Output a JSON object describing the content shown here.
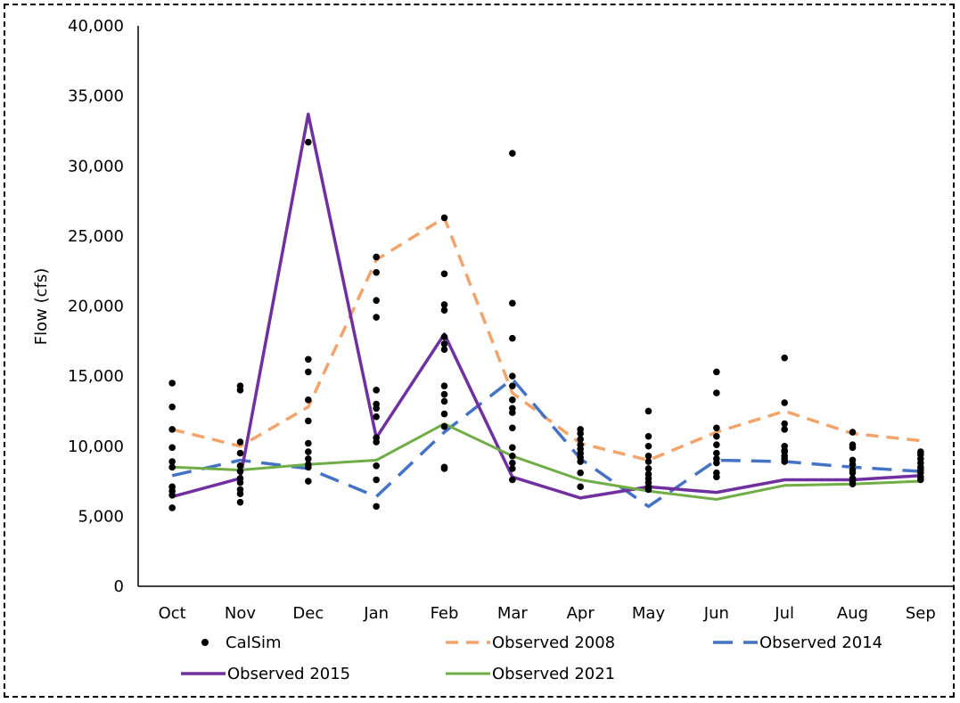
{
  "chart_data": {
    "type": "line",
    "title": "",
    "xlabel": "",
    "ylabel": "Flow (cfs)",
    "ylim": [
      0,
      40000
    ],
    "yticks": [
      0,
      5000,
      10000,
      15000,
      20000,
      25000,
      30000,
      35000,
      40000
    ],
    "ytick_labels": [
      "0",
      "5,000",
      "10,000",
      "15,000",
      "20,000",
      "25,000",
      "30,000",
      "35,000",
      "40,000"
    ],
    "categories": [
      "Oct",
      "Nov",
      "Dec",
      "Jan",
      "Feb",
      "Mar",
      "Apr",
      "May",
      "Jun",
      "Jul",
      "Aug",
      "Sep"
    ],
    "grid": false,
    "legend_position": "bottom",
    "scatter": {
      "name": "CalSim",
      "color": "#000000",
      "points": [
        [
          14500,
          12800,
          11200,
          9900,
          8900,
          8500,
          7100,
          6800,
          6500,
          5600
        ],
        [
          14300,
          14000,
          10300,
          9500,
          8600,
          8200,
          7700,
          7400,
          6900,
          6600,
          6000
        ],
        [
          31700,
          16200,
          15300,
          13300,
          11800,
          10200,
          9600,
          9100,
          8700,
          8500,
          7500
        ],
        [
          23500,
          22400,
          20400,
          19200,
          14000,
          13000,
          12700,
          12100,
          10600,
          10300,
          8600,
          7600,
          5700
        ],
        [
          26300,
          22300,
          20100,
          19700,
          17800,
          17300,
          16900,
          14300,
          13700,
          13200,
          12300,
          11400,
          8500,
          8400
        ],
        [
          30900,
          20200,
          17700,
          15000,
          14300,
          13300,
          12700,
          12400,
          11300,
          9900,
          9300,
          8800,
          8400,
          7600
        ],
        [
          11200,
          10900,
          10500,
          10100,
          9800,
          9500,
          9200,
          8900,
          8100,
          7100
        ],
        [
          12500,
          10700,
          10000,
          9300,
          8900,
          8400,
          8000,
          7700,
          7400,
          7100,
          6900
        ],
        [
          15300,
          13800,
          11300,
          10700,
          10100,
          9500,
          9100,
          8800,
          8100,
          7800
        ],
        [
          16300,
          13100,
          11600,
          11200,
          10000,
          9700,
          9600,
          9300,
          9100,
          8900
        ],
        [
          11000,
          10100,
          9900,
          9000,
          8700,
          8300,
          8100,
          7700,
          7500,
          7300
        ],
        [
          9600,
          9400,
          9100,
          8800,
          8500,
          8300,
          8100,
          7800,
          7600
        ]
      ]
    },
    "series": [
      {
        "name": "Observed 2008",
        "color": "#f4a46a",
        "dash": "14 9",
        "width": 3.5,
        "values": [
          11200,
          10000,
          12800,
          23300,
          26300,
          13800,
          10200,
          9000,
          11000,
          12500,
          10900,
          10400
        ]
      },
      {
        "name": "Observed 2014",
        "color": "#4472c4",
        "dash": "22 12",
        "width": 3.5,
        "values": [
          7900,
          9000,
          8400,
          6400,
          11000,
          14800,
          9100,
          5700,
          9000,
          8900,
          8500,
          8200
        ]
      },
      {
        "name": "Observed 2015",
        "color": "#7030a0",
        "dash": "",
        "width": 3.5,
        "values": [
          6400,
          7700,
          33700,
          10600,
          18000,
          7800,
          6300,
          7100,
          6700,
          7600,
          7600,
          7900
        ]
      },
      {
        "name": "Observed 2021",
        "color": "#70ad47",
        "dash": "",
        "width": 3,
        "values": [
          8500,
          8300,
          8700,
          9000,
          11600,
          9300,
          7600,
          6800,
          6200,
          7200,
          7300,
          7500
        ]
      }
    ]
  }
}
